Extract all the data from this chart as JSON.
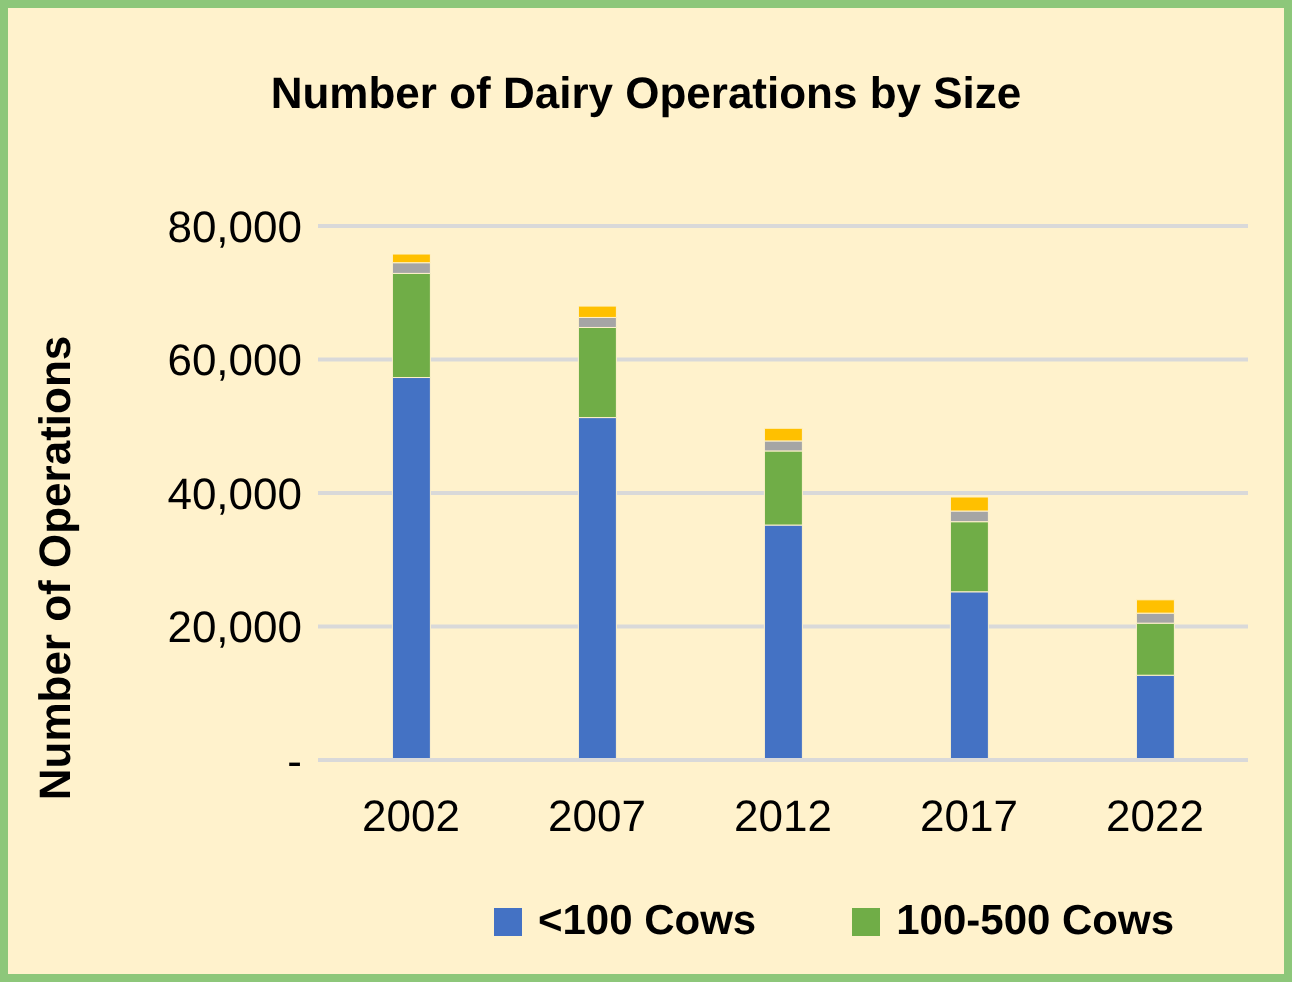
{
  "chart_data": {
    "type": "bar",
    "title": "Number of Dairy Operations by Size",
    "ylabel": "Number of Operations",
    "categories": [
      "2002",
      "2007",
      "2012",
      "2017",
      "2022"
    ],
    "stacked": true,
    "series": [
      {
        "name": "<100 Cows",
        "color": "#4472c4",
        "values": [
          57300,
          51300,
          35200,
          25200,
          12700
        ]
      },
      {
        "name": "100-500 Cows",
        "color": "#70ad47",
        "values": [
          15600,
          13500,
          11100,
          10500,
          7800
        ]
      },
      {
        "color": "#a5a5a5",
        "values": [
          1600,
          1500,
          1500,
          1600,
          1500
        ]
      },
      {
        "color": "#ffc000",
        "values": [
          1300,
          1700,
          1900,
          2100,
          2000
        ]
      }
    ],
    "ylim": [
      0,
      80000
    ],
    "yticks": [
      {
        "value": 0,
        "label": "-"
      },
      {
        "value": 20000,
        "label": "20,000"
      },
      {
        "value": 40000,
        "label": "40,000"
      },
      {
        "value": 60000,
        "label": "60,000"
      },
      {
        "value": 80000,
        "label": "80,000"
      }
    ],
    "grid": "y",
    "legend": "bottom"
  }
}
